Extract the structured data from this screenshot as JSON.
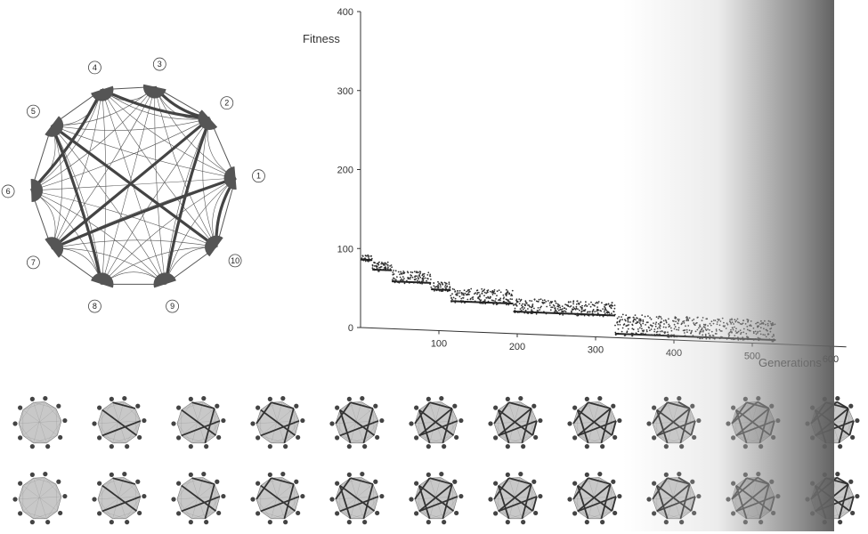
{
  "chart_data": {
    "type": "scatter",
    "title": "",
    "ylabel": "Fitness",
    "xlabel": "Generations",
    "xlim": [
      0,
      600
    ],
    "ylim": [
      0,
      400
    ],
    "x_ticks": [
      100,
      200,
      300,
      400,
      500,
      600
    ],
    "x_tick_labels": [
      "100",
      "200",
      "300",
      "400",
      "500",
      "600"
    ],
    "y_ticks": [
      0,
      100,
      200,
      300,
      400
    ],
    "y_tick_labels": [
      "0",
      "100",
      "200",
      "300",
      "400"
    ],
    "grid": false,
    "series": [
      {
        "role": "best",
        "steps": [
          {
            "x0": 0,
            "x1": 15,
            "y": 86
          },
          {
            "x0": 15,
            "x1": 40,
            "y": 74
          },
          {
            "x0": 40,
            "x1": 90,
            "y": 60
          },
          {
            "x0": 90,
            "x1": 115,
            "y": 52
          },
          {
            "x0": 115,
            "x1": 195,
            "y": 38
          },
          {
            "x0": 195,
            "x1": 325,
            "y": 28
          },
          {
            "x0": 325,
            "x1": 530,
            "y": 5
          }
        ]
      },
      {
        "role": "population",
        "bands": [
          {
            "x0": 0,
            "x1": 15,
            "y_min": 84,
            "y_max": 92
          },
          {
            "x0": 15,
            "x1": 40,
            "y_min": 72,
            "y_max": 84
          },
          {
            "x0": 40,
            "x1": 90,
            "y_min": 58,
            "y_max": 74
          },
          {
            "x0": 90,
            "x1": 115,
            "y_min": 50,
            "y_max": 62
          },
          {
            "x0": 115,
            "x1": 195,
            "y_min": 36,
            "y_max": 55
          },
          {
            "x0": 195,
            "x1": 325,
            "y_min": 26,
            "y_max": 45
          },
          {
            "x0": 325,
            "x1": 530,
            "y_min": 3,
            "y_max": 30
          }
        ]
      }
    ]
  },
  "network": {
    "node_labels": [
      "1",
      "2",
      "3",
      "4",
      "5",
      "6",
      "7",
      "8",
      "9",
      "10"
    ],
    "bold_links": [
      [
        4,
        2
      ],
      [
        4,
        6
      ],
      [
        5,
        10
      ],
      [
        5,
        8
      ],
      [
        7,
        2
      ],
      [
        7,
        1
      ],
      [
        9,
        2
      ],
      [
        1,
        10
      ],
      [
        3,
        2
      ]
    ],
    "line_color": "#555555",
    "bold_color": "#444444",
    "node_color": "#555555"
  },
  "thumbnails": {
    "count_per_row": 11,
    "rows": 2,
    "fill_color": "#c8c8c8"
  }
}
